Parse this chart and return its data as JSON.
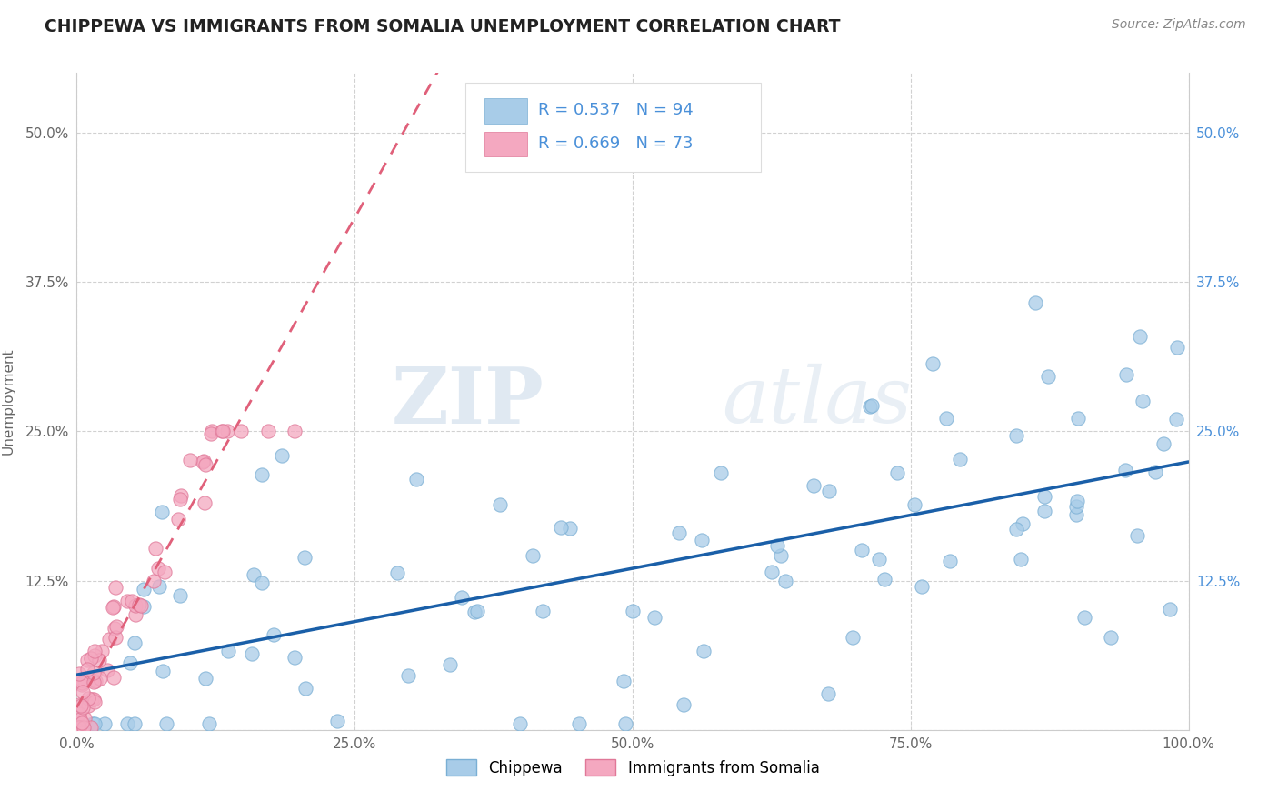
{
  "title": "CHIPPEWA VS IMMIGRANTS FROM SOMALIA UNEMPLOYMENT CORRELATION CHART",
  "source": "Source: ZipAtlas.com",
  "ylabel": "Unemployment",
  "xlim_low": 0.0,
  "xlim_high": 1.0,
  "ylim_low": 0.0,
  "ylim_high": 0.55,
  "xticks": [
    0.0,
    0.25,
    0.5,
    0.75,
    1.0
  ],
  "xticklabels": [
    "0.0%",
    "25.0%",
    "50.0%",
    "75.0%",
    "100.0%"
  ],
  "yticks": [
    0.0,
    0.125,
    0.25,
    0.375,
    0.5
  ],
  "yticklabels": [
    "",
    "12.5%",
    "25.0%",
    "37.5%",
    "50.0%"
  ],
  "chippewa_color": "#a8cce8",
  "chippewa_edge_color": "#7aafd4",
  "somalia_color": "#f4a8c0",
  "somalia_edge_color": "#e07898",
  "chippewa_line_color": "#1a5fa8",
  "somalia_line_color": "#e0607a",
  "r_chippewa": "0.537",
  "n_chippewa": "94",
  "r_somalia": "0.669",
  "n_somalia": "73",
  "stat_color": "#4a90d9",
  "legend_label_1": "Chippewa",
  "legend_label_2": "Immigrants from Somalia",
  "watermark_zip": "ZIP",
  "watermark_atlas": "atlas",
  "bg_color": "#ffffff",
  "grid_color": "#cccccc",
  "title_color": "#222222",
  "source_color": "#888888",
  "tick_color": "#666666",
  "legend_box_color": "#dddddd"
}
